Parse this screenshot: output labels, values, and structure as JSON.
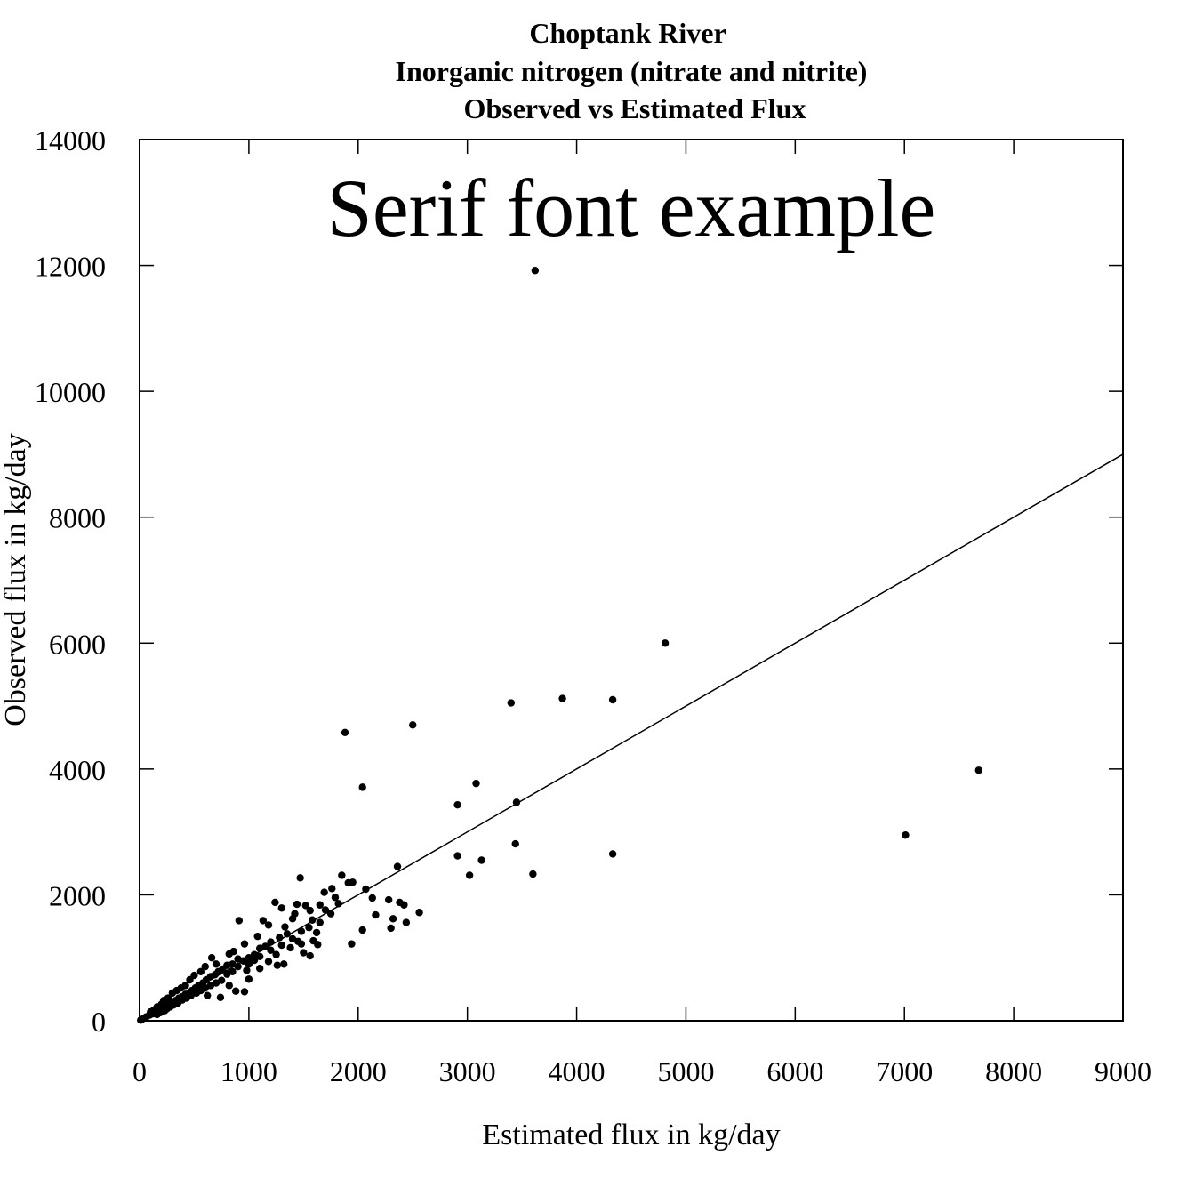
{
  "chart_data": {
    "type": "scatter",
    "title_lines": [
      "Choptank River",
      "Inorganic nitrogen (nitrate and nitrite)",
      "Observed vs Estimated Flux"
    ],
    "xlabel": "Estimated flux in kg/day",
    "ylabel": "Observed flux in kg/day",
    "annotation": "Serif font example",
    "xlim": [
      0,
      9000
    ],
    "ylim": [
      0,
      14000
    ],
    "xticks": [
      0,
      1000,
      2000,
      3000,
      4000,
      5000,
      6000,
      7000,
      8000,
      9000
    ],
    "yticks": [
      0,
      2000,
      4000,
      6000,
      8000,
      10000,
      12000,
      14000
    ],
    "grid": false,
    "reference_line": {
      "slope": 1,
      "intercept": 0
    },
    "point_color": "#000000",
    "series": [
      {
        "points": [
          [
            3620,
            11920
          ],
          [
            4810,
            6000
          ],
          [
            3870,
            5120
          ],
          [
            4330,
            5100
          ],
          [
            3400,
            5050
          ],
          [
            2500,
            4700
          ],
          [
            1880,
            4580
          ],
          [
            7680,
            3980
          ],
          [
            3080,
            3770
          ],
          [
            2040,
            3710
          ],
          [
            3450,
            3470
          ],
          [
            2910,
            3430
          ],
          [
            7010,
            2950
          ],
          [
            3440,
            2810
          ],
          [
            4330,
            2650
          ],
          [
            2910,
            2620
          ],
          [
            3130,
            2550
          ],
          [
            2360,
            2450
          ],
          [
            3600,
            2330
          ],
          [
            3020,
            2310
          ],
          [
            1470,
            2270
          ],
          [
            1850,
            2310
          ],
          [
            1950,
            2200
          ],
          [
            1910,
            2190
          ],
          [
            1760,
            2100
          ],
          [
            1690,
            2040
          ],
          [
            2070,
            2090
          ],
          [
            1790,
            1960
          ],
          [
            2130,
            1950
          ],
          [
            2280,
            1920
          ],
          [
            2420,
            1840
          ],
          [
            2380,
            1880
          ],
          [
            2560,
            1720
          ],
          [
            2160,
            1680
          ],
          [
            2320,
            1620
          ],
          [
            2440,
            1560
          ],
          [
            2300,
            1470
          ],
          [
            2040,
            1440
          ],
          [
            1940,
            1220
          ],
          [
            1630,
            1210
          ],
          [
            1560,
            1030
          ],
          [
            1500,
            1080
          ],
          [
            1480,
            1220
          ],
          [
            1590,
            1270
          ],
          [
            1620,
            1400
          ],
          [
            1580,
            1600
          ],
          [
            1560,
            1750
          ],
          [
            1520,
            1830
          ],
          [
            1650,
            1840
          ],
          [
            1700,
            1760
          ],
          [
            1440,
            1850
          ],
          [
            1400,
            1620
          ],
          [
            1330,
            1490
          ],
          [
            1300,
            1790
          ],
          [
            1240,
            1880
          ],
          [
            1180,
            1520
          ],
          [
            1130,
            1590
          ],
          [
            910,
            1590
          ],
          [
            1320,
            900
          ],
          [
            1260,
            880
          ],
          [
            1180,
            940
          ],
          [
            1100,
            830
          ],
          [
            1080,
            1340
          ],
          [
            960,
            1220
          ],
          [
            960,
            460
          ],
          [
            880,
            470
          ],
          [
            820,
            560
          ],
          [
            740,
            370
          ],
          [
            620,
            400
          ],
          [
            1000,
            660
          ],
          [
            980,
            800
          ],
          [
            1420,
            1700
          ],
          [
            1350,
            1380
          ],
          [
            1280,
            1320
          ],
          [
            1200,
            1250
          ],
          [
            1150,
            1180
          ],
          [
            1100,
            1150
          ],
          [
            1050,
            1050
          ],
          [
            1000,
            1000
          ],
          [
            950,
            950
          ],
          [
            900,
            980
          ],
          [
            850,
            900
          ],
          [
            800,
            880
          ],
          [
            760,
            820
          ],
          [
            720,
            780
          ],
          [
            690,
            730
          ],
          [
            650,
            700
          ],
          [
            610,
            650
          ],
          [
            580,
            600
          ],
          [
            540,
            560
          ],
          [
            510,
            520
          ],
          [
            480,
            480
          ],
          [
            450,
            430
          ],
          [
            420,
            420
          ],
          [
            390,
            380
          ],
          [
            360,
            360
          ],
          [
            330,
            320
          ],
          [
            300,
            300
          ],
          [
            270,
            270
          ],
          [
            240,
            240
          ],
          [
            210,
            200
          ],
          [
            180,
            180
          ],
          [
            150,
            140
          ],
          [
            120,
            110
          ],
          [
            90,
            90
          ],
          [
            60,
            60
          ],
          [
            40,
            40
          ],
          [
            20,
            20
          ],
          [
            10,
            10
          ],
          [
            700,
            900
          ],
          [
            660,
            1000
          ],
          [
            600,
            860
          ],
          [
            560,
            780
          ],
          [
            500,
            720
          ],
          [
            460,
            650
          ],
          [
            420,
            560
          ],
          [
            380,
            520
          ],
          [
            340,
            480
          ],
          [
            300,
            440
          ],
          [
            260,
            360
          ],
          [
            220,
            320
          ],
          [
            200,
            260
          ],
          [
            160,
            220
          ],
          [
            130,
            170
          ],
          [
            100,
            140
          ],
          [
            750,
            640
          ],
          [
            700,
            600
          ],
          [
            650,
            560
          ],
          [
            600,
            520
          ],
          [
            560,
            480
          ],
          [
            520,
            440
          ],
          [
            470,
            400
          ],
          [
            430,
            360
          ],
          [
            390,
            330
          ],
          [
            350,
            280
          ],
          [
            310,
            250
          ],
          [
            280,
            220
          ],
          [
            250,
            190
          ],
          [
            230,
            160
          ],
          [
            190,
            130
          ],
          [
            160,
            100
          ],
          [
            1250,
            1050
          ],
          [
            1200,
            1120
          ],
          [
            1100,
            1020
          ],
          [
            1050,
            960
          ],
          [
            1000,
            900
          ],
          [
            900,
            860
          ],
          [
            850,
            780
          ],
          [
            800,
            740
          ],
          [
            1400,
            1300
          ],
          [
            1480,
            1420
          ],
          [
            1550,
            1480
          ],
          [
            1650,
            1560
          ],
          [
            1750,
            1700
          ],
          [
            1820,
            1860
          ],
          [
            1300,
            1200
          ],
          [
            1380,
            1160
          ],
          [
            1450,
            1260
          ],
          [
            860,
            1100
          ],
          [
            820,
            1060
          ]
        ]
      }
    ]
  }
}
